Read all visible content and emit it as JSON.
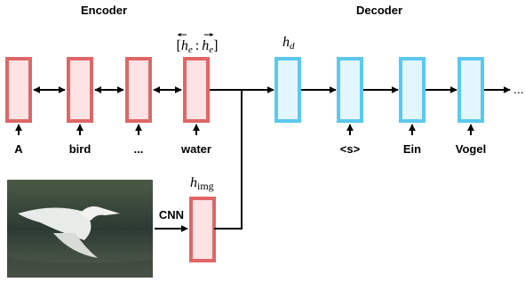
{
  "encoder_title": "Encoder",
  "decoder_title": "Decoder",
  "encoder_tokens": [
    "A",
    "bird",
    "...",
    "water"
  ],
  "decoder_tokens": [
    "<s>",
    "Ein",
    "Vogel"
  ],
  "context_label": {
    "open": "[",
    "h_backward": "h",
    "sub_backward": "e",
    "colon": ":",
    "h_forward": "h",
    "sub_forward": "e",
    "close": "]"
  },
  "decoder_label": {
    "h": "h",
    "sub": "d"
  },
  "image_label": {
    "h": "h",
    "sub": "img"
  },
  "cnn_label": "CNN",
  "continuation": "..."
}
